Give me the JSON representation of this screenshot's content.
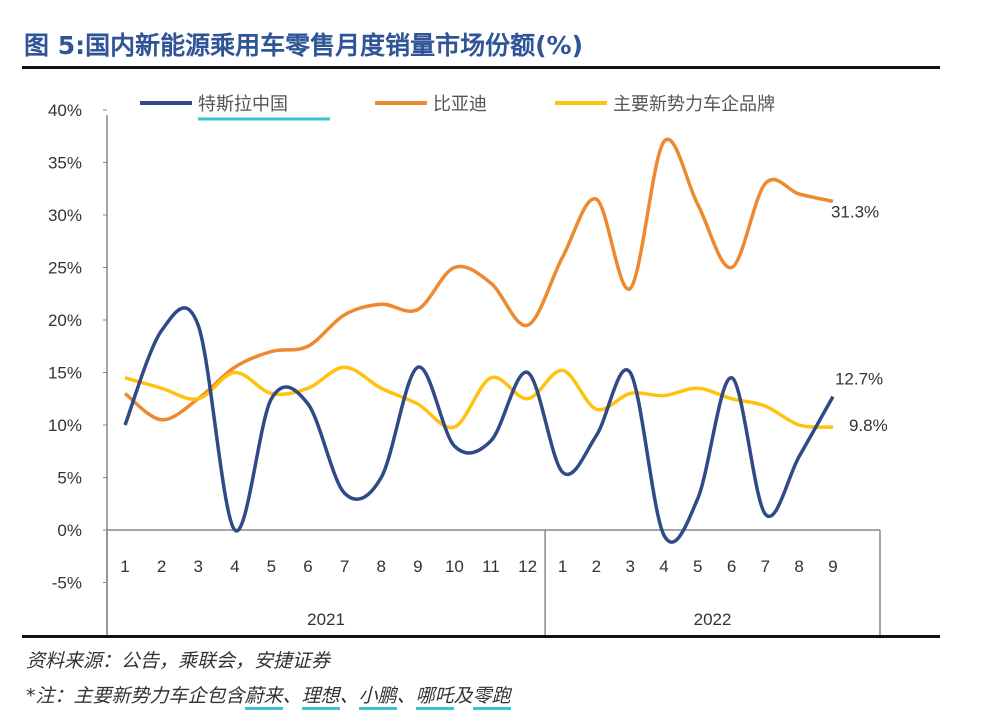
{
  "title": "图 5:国内新能源乘用车零售月度销量市场份额(%)",
  "footer": {
    "source": "资料来源：公告，乘联会，安捷证券",
    "note_prefix": "*注：主要新势力车企包含",
    "note_brands": [
      "蔚来",
      "理想",
      "小鹏",
      "哪吒"
    ],
    "note_sep": "、",
    "note_and": "及",
    "note_last": "零跑"
  },
  "chart_data": {
    "type": "line",
    "title": "图 5:国内新能源乘用车零售月度销量市场份额(%)",
    "ylim": [
      -5,
      40
    ],
    "yticks": [
      -5,
      0,
      5,
      10,
      15,
      20,
      25,
      30,
      35,
      40
    ],
    "ytick_labels": [
      "-5%",
      "0%",
      "5%",
      "10%",
      "15%",
      "20%",
      "25%",
      "30%",
      "35%",
      "40%"
    ],
    "groups": [
      {
        "label": "2021",
        "months": [
          "1",
          "2",
          "3",
          "4",
          "5",
          "6",
          "7",
          "8",
          "9",
          "10",
          "11",
          "12"
        ]
      },
      {
        "label": "2022",
        "months": [
          "1",
          "2",
          "3",
          "4",
          "5",
          "6",
          "7",
          "8",
          "9"
        ]
      }
    ],
    "legend_position": "top",
    "series": [
      {
        "name": "特斯拉中国",
        "color": "#2f4a86",
        "values": [
          10,
          19,
          19.5,
          0,
          12.5,
          12,
          3.5,
          5,
          15.5,
          8,
          8.5,
          15,
          5.5,
          9,
          15,
          -0.5,
          3,
          14.5,
          1.5,
          7,
          12.7
        ],
        "end_label": "12.7%"
      },
      {
        "name": "比亚迪",
        "color": "#ed8a2f",
        "values": [
          13,
          10.5,
          12.5,
          15.5,
          17,
          17.5,
          20.5,
          21.5,
          21,
          25,
          23.5,
          19.5,
          26,
          31.5,
          23,
          37,
          31,
          25,
          33,
          32,
          31.3
        ],
        "end_label": "31.3%"
      },
      {
        "name": "主要新势力车企品牌",
        "color": "#ffc20e",
        "values": [
          14.5,
          13.5,
          12.5,
          15,
          13,
          13.5,
          15.5,
          13.5,
          12,
          9.8,
          14.5,
          12.5,
          15.2,
          11.5,
          13,
          12.8,
          13.5,
          12.5,
          11.8,
          10,
          9.8
        ],
        "end_label": "9.8%"
      }
    ]
  }
}
